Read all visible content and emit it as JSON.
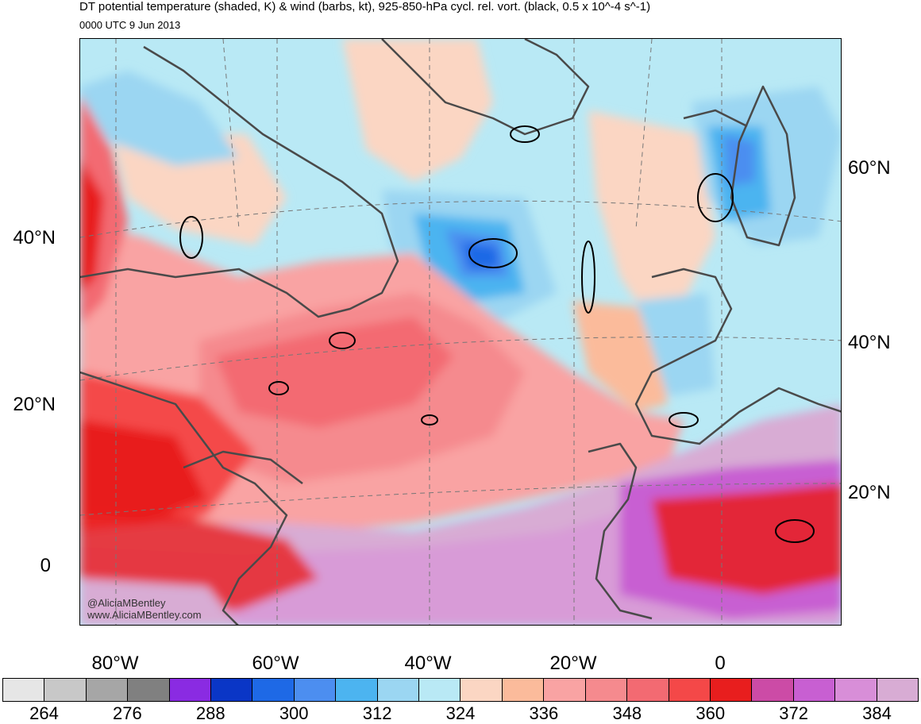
{
  "header": {
    "title": "DT potential temperature (shaded, K) & wind (barbs, kt), 925-850-hPa cycl. rel. vort. (black, 0.5 x 10^-4 s^-1)",
    "subtitle": "0000 UTC 9 Jun 2013"
  },
  "axes": {
    "lat_left": [
      "40°N",
      "20°N",
      "0"
    ],
    "lat_right": [
      "60°N",
      "40°N",
      "20°N"
    ],
    "lon_bottom": [
      "80°W",
      "60°W",
      "40°W",
      "20°W",
      "0"
    ]
  },
  "credit": {
    "handle": "@AliciaMBentley",
    "site": "www.AliciaMBentley.com"
  },
  "colorbar": {
    "colors": [
      "#e6e6e6",
      "#c8c8c8",
      "#a6a6a6",
      "#808080",
      "#8a2be2",
      "#0a36c6",
      "#1e69e6",
      "#4c8ef0",
      "#4cb4f0",
      "#9bd6f2",
      "#b9e9f5",
      "#fbd6c3",
      "#fbbb9b",
      "#f9a3a3",
      "#f58a8e",
      "#f36a72",
      "#f44848",
      "#e81e1e",
      "#cc4ba6",
      "#c85fd2",
      "#d88ed8",
      "#d8acd4"
    ],
    "labels": [
      "264",
      "276",
      "288",
      "300",
      "312",
      "324",
      "336",
      "348",
      "360",
      "372",
      "384"
    ]
  }
}
